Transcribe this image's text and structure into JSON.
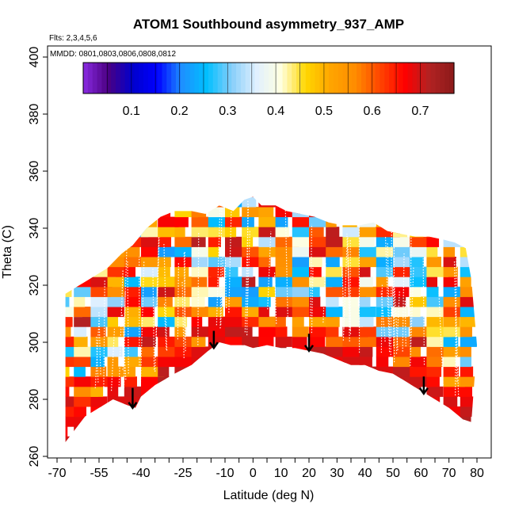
{
  "chart_data": {
    "type": "heatmap",
    "title": "ATOM1 Southbound asymmetry_937_AMP",
    "annotations": {
      "flights": "Flts: 2,3,4,5,6",
      "dates": "MMDD: 0801,0803,0806,0808,0812"
    },
    "xlabel": "Latitude (deg N)",
    "ylabel": "Theta (C)",
    "xlim": [
      -70,
      80
    ],
    "ylim": [
      260,
      400
    ],
    "x_tick_labels": [
      "-70",
      "-55",
      "-40",
      "-25",
      "-10",
      "0",
      "10",
      "20",
      "30",
      "40",
      "50",
      "60",
      "70",
      "80"
    ],
    "x_ticks": [
      -70,
      -55,
      -40,
      -25,
      -10,
      0,
      10,
      20,
      30,
      40,
      50,
      60,
      70,
      80
    ],
    "y_tick_labels": [
      "260",
      "280",
      "300",
      "320",
      "340",
      "360",
      "380",
      "400"
    ],
    "y_ticks": [
      260,
      280,
      300,
      320,
      340,
      360,
      380,
      400
    ],
    "colorbar": {
      "range": [
        0.0,
        0.77
      ],
      "tick_labels": [
        "0.1",
        "0.2",
        "0.3",
        "0.4",
        "0.5",
        "0.6",
        "0.7"
      ],
      "ticks": [
        0.1,
        0.2,
        0.3,
        0.4,
        0.5,
        0.6,
        0.7
      ],
      "colors": [
        "#8a2be2",
        "#4b0082",
        "#0000cd",
        "#0000ff",
        "#1e90ff",
        "#00bfff",
        "#87cefa",
        "#e0f0ff",
        "#ffffe0",
        "#ffd700",
        "#ffa500",
        "#ff8c00",
        "#ff4500",
        "#ff0000",
        "#b22222",
        "#8b1a1a"
      ]
    },
    "tropopause_boundary": [
      [
        -67,
        265
      ],
      [
        -60,
        274
      ],
      [
        -55,
        277
      ],
      [
        -50,
        280
      ],
      [
        -45,
        278
      ],
      [
        -42,
        277
      ],
      [
        -40,
        281
      ],
      [
        -35,
        285
      ],
      [
        -28,
        289
      ],
      [
        -22,
        292
      ],
      [
        -16,
        297
      ],
      [
        -12,
        300
      ],
      [
        -8,
        299
      ],
      [
        -3,
        299
      ],
      [
        0,
        298
      ],
      [
        5,
        299
      ],
      [
        10,
        298
      ],
      [
        15,
        298
      ],
      [
        20,
        297
      ],
      [
        25,
        296
      ],
      [
        30,
        294
      ],
      [
        35,
        292
      ],
      [
        40,
        292
      ],
      [
        45,
        290
      ],
      [
        50,
        289
      ],
      [
        55,
        286
      ],
      [
        60,
        283
      ],
      [
        65,
        280
      ],
      [
        70,
        277
      ],
      [
        75,
        273
      ],
      [
        78,
        272
      ]
    ],
    "top_boundary": [
      [
        -67,
        317
      ],
      [
        -62,
        320
      ],
      [
        -57,
        323
      ],
      [
        -52,
        326
      ],
      [
        -47,
        331
      ],
      [
        -43,
        334
      ],
      [
        -38,
        340
      ],
      [
        -33,
        344
      ],
      [
        -28,
        346
      ],
      [
        -22,
        346
      ],
      [
        -17,
        345
      ],
      [
        -12,
        348
      ],
      [
        -7,
        346
      ],
      [
        -3,
        350
      ],
      [
        0,
        351
      ],
      [
        3,
        348
      ],
      [
        8,
        348
      ],
      [
        12,
        346
      ],
      [
        17,
        345
      ],
      [
        22,
        344
      ],
      [
        27,
        342
      ],
      [
        32,
        341
      ],
      [
        38,
        341
      ],
      [
        43,
        342
      ],
      [
        48,
        339
      ],
      [
        53,
        338
      ],
      [
        58,
        337
      ],
      [
        63,
        337
      ],
      [
        68,
        336
      ],
      [
        72,
        335
      ],
      [
        76,
        333
      ],
      [
        78,
        322
      ],
      [
        80,
        299
      ]
    ],
    "arrows": [
      {
        "lat": -43,
        "theta_top": 284,
        "theta_bottom": 277
      },
      {
        "lat": -14,
        "theta_top": 304,
        "theta_bottom": 298
      },
      {
        "lat": 20,
        "theta_top": 303,
        "theta_bottom": 297
      },
      {
        "lat": 61,
        "theta_top": 288,
        "theta_bottom": 282
      }
    ]
  }
}
